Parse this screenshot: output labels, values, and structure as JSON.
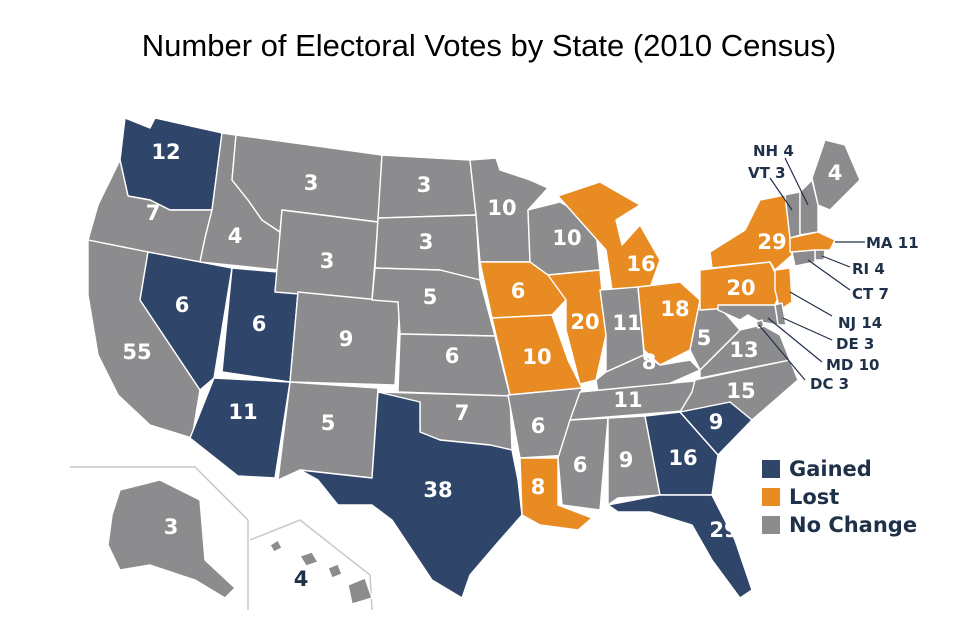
{
  "title": "Number of Electoral Votes by State (2010 Census)",
  "colors": {
    "gained": "#2f4569",
    "lost": "#e98b23",
    "no_change": "#8c8c8e",
    "label_dark": "#1f3049"
  },
  "legend": [
    {
      "key": "gained",
      "label": "Gained"
    },
    {
      "key": "lost",
      "label": "Lost"
    },
    {
      "key": "no_change",
      "label": "No Change"
    }
  ],
  "states": [
    {
      "code": "WA",
      "votes": "12",
      "status": "gained"
    },
    {
      "code": "OR",
      "votes": "7",
      "status": "no_change"
    },
    {
      "code": "CA",
      "votes": "55",
      "status": "no_change"
    },
    {
      "code": "ID",
      "votes": "4",
      "status": "no_change"
    },
    {
      "code": "NV",
      "votes": "6",
      "status": "gained"
    },
    {
      "code": "UT",
      "votes": "6",
      "status": "gained"
    },
    {
      "code": "AZ",
      "votes": "11",
      "status": "gained"
    },
    {
      "code": "MT",
      "votes": "3",
      "status": "no_change"
    },
    {
      "code": "WY",
      "votes": "3",
      "status": "no_change"
    },
    {
      "code": "CO",
      "votes": "9",
      "status": "no_change"
    },
    {
      "code": "NM",
      "votes": "5",
      "status": "no_change"
    },
    {
      "code": "ND",
      "votes": "3",
      "status": "no_change"
    },
    {
      "code": "SD",
      "votes": "3",
      "status": "no_change"
    },
    {
      "code": "NE",
      "votes": "5",
      "status": "no_change"
    },
    {
      "code": "KS",
      "votes": "6",
      "status": "no_change"
    },
    {
      "code": "OK",
      "votes": "7",
      "status": "no_change"
    },
    {
      "code": "TX",
      "votes": "38",
      "status": "gained"
    },
    {
      "code": "MN",
      "votes": "10",
      "status": "no_change"
    },
    {
      "code": "IA",
      "votes": "6",
      "status": "lost"
    },
    {
      "code": "MO",
      "votes": "10",
      "status": "lost"
    },
    {
      "code": "AR",
      "votes": "6",
      "status": "no_change"
    },
    {
      "code": "LA",
      "votes": "8",
      "status": "lost"
    },
    {
      "code": "WI",
      "votes": "10",
      "status": "no_change"
    },
    {
      "code": "IL",
      "votes": "20",
      "status": "lost"
    },
    {
      "code": "MI",
      "votes": "16",
      "status": "lost"
    },
    {
      "code": "IN",
      "votes": "11",
      "status": "no_change"
    },
    {
      "code": "OH",
      "votes": "18",
      "status": "lost"
    },
    {
      "code": "KY",
      "votes": "8",
      "status": "no_change"
    },
    {
      "code": "TN",
      "votes": "11",
      "status": "no_change"
    },
    {
      "code": "MS",
      "votes": "6",
      "status": "no_change"
    },
    {
      "code": "AL",
      "votes": "9",
      "status": "no_change"
    },
    {
      "code": "GA",
      "votes": "16",
      "status": "gained"
    },
    {
      "code": "FL",
      "votes": "29",
      "status": "gained"
    },
    {
      "code": "SC",
      "votes": "9",
      "status": "gained"
    },
    {
      "code": "NC",
      "votes": "15",
      "status": "no_change"
    },
    {
      "code": "VA",
      "votes": "13",
      "status": "no_change"
    },
    {
      "code": "WV",
      "votes": "5",
      "status": "no_change"
    },
    {
      "code": "PA",
      "votes": "20",
      "status": "lost"
    },
    {
      "code": "NY",
      "votes": "29",
      "status": "lost"
    },
    {
      "code": "ME",
      "votes": "4",
      "status": "no_change"
    },
    {
      "code": "AK",
      "votes": "3",
      "status": "no_change"
    },
    {
      "code": "HI",
      "votes": "4",
      "status": "no_change"
    },
    {
      "code": "VT",
      "votes": "3",
      "status": "no_change"
    },
    {
      "code": "NH",
      "votes": "4",
      "status": "no_change"
    },
    {
      "code": "MA",
      "votes": "11",
      "status": "lost"
    },
    {
      "code": "RI",
      "votes": "4",
      "status": "no_change"
    },
    {
      "code": "CT",
      "votes": "7",
      "status": "no_change"
    },
    {
      "code": "NJ",
      "votes": "14",
      "status": "lost"
    },
    {
      "code": "DE",
      "votes": "3",
      "status": "no_change"
    },
    {
      "code": "MD",
      "votes": "10",
      "status": "no_change"
    },
    {
      "code": "DC",
      "votes": "3",
      "status": "no_change"
    }
  ],
  "callouts": {
    "NH": "NH 4",
    "VT": "VT 3",
    "MA": "MA 11",
    "RI": "RI 4",
    "CT": "CT 7",
    "NJ": "NJ 14",
    "DE": "DE 3",
    "MD": "MD 10",
    "DC": "DC 3"
  }
}
